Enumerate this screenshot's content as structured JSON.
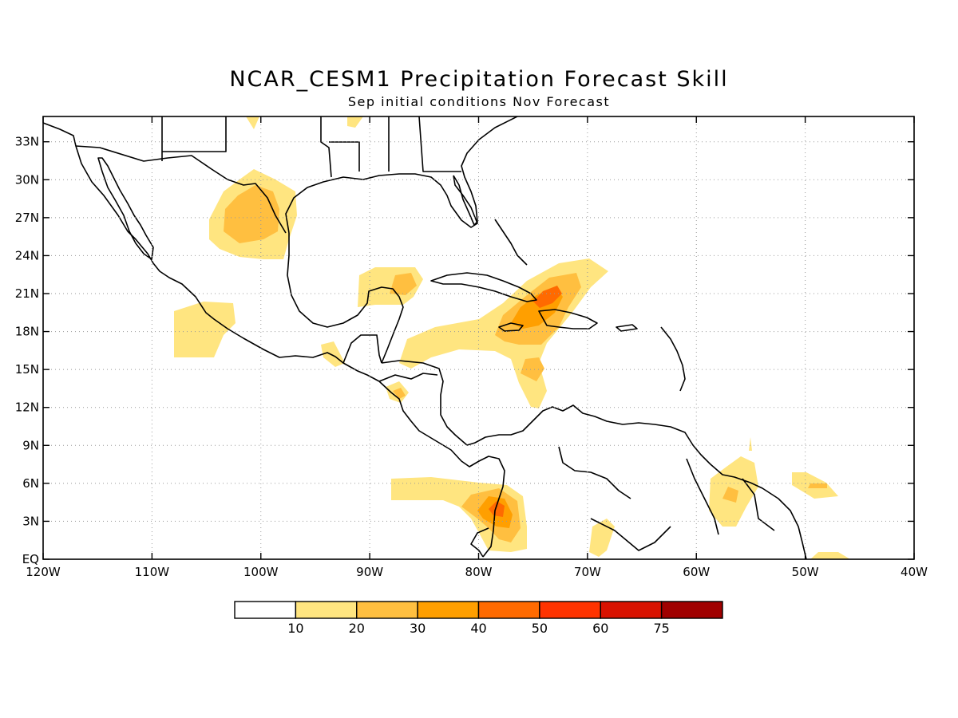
{
  "title": "NCAR_CESM1 Precipitation Forecast Skill",
  "subtitle": "Sep initial conditions   Nov Forecast",
  "map": {
    "lon_range": [
      -120,
      -40
    ],
    "lat_range": [
      0,
      35
    ],
    "x_ticks": [
      {
        "lon": -120,
        "label": "120W"
      },
      {
        "lon": -110,
        "label": "110W"
      },
      {
        "lon": -100,
        "label": "100W"
      },
      {
        "lon": -90,
        "label": "90W"
      },
      {
        "lon": -80,
        "label": "80W"
      },
      {
        "lon": -70,
        "label": "70W"
      },
      {
        "lon": -60,
        "label": "60W"
      },
      {
        "lon": -50,
        "label": "50W"
      },
      {
        "lon": -40,
        "label": "40W"
      }
    ],
    "y_ticks": [
      {
        "lat": 0,
        "label": "EQ"
      },
      {
        "lat": 3,
        "label": "3N"
      },
      {
        "lat": 6,
        "label": "6N"
      },
      {
        "lat": 9,
        "label": "9N"
      },
      {
        "lat": 12,
        "label": "12N"
      },
      {
        "lat": 15,
        "label": "15N"
      },
      {
        "lat": 18,
        "label": "18N"
      },
      {
        "lat": 21,
        "label": "21N"
      },
      {
        "lat": 24,
        "label": "24N"
      },
      {
        "lat": 27,
        "label": "27N"
      },
      {
        "lat": 30,
        "label": "30N"
      },
      {
        "lat": 33,
        "label": "33N"
      }
    ],
    "grid": "dotted"
  },
  "colorbar": {
    "colors": [
      "#ffffff",
      "#ffe580",
      "#ffbf40",
      "#ff9f00",
      "#ff6a00",
      "#ff3300",
      "#d81200",
      "#a00000"
    ],
    "labels": [
      "10",
      "20",
      "30",
      "40",
      "50",
      "60",
      "75"
    ]
  }
}
